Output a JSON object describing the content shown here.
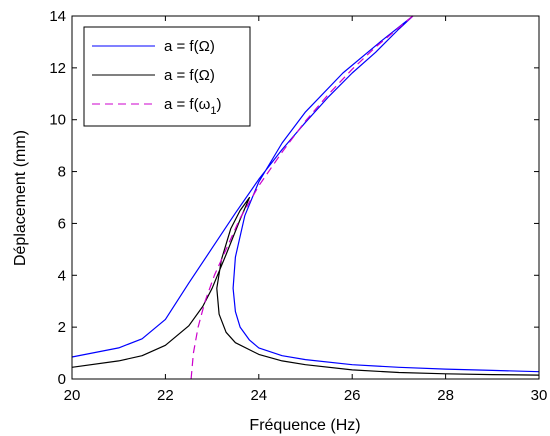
{
  "chart_data": {
    "type": "line",
    "title": "",
    "xlabel": "Fréquence (Hz)",
    "ylabel": "Déplacement (mm)",
    "xlim": [
      20,
      30
    ],
    "ylim": [
      0,
      14
    ],
    "xticks": [
      20,
      22,
      24,
      26,
      28,
      30
    ],
    "yticks": [
      0,
      2,
      4,
      6,
      8,
      10,
      12,
      14
    ],
    "xtick_labels": [
      "20",
      "22",
      "24",
      "26",
      "28",
      "30"
    ],
    "ytick_labels": [
      "0",
      "2",
      "4",
      "6",
      "8",
      "10",
      "12",
      "14"
    ],
    "grid": false,
    "legend_position": "top-left",
    "series": [
      {
        "name": "a = f(Ω)",
        "color": "#0000ff",
        "dash": "solid",
        "x": [
          20.0,
          21.0,
          21.5,
          22.0,
          22.5,
          23.0,
          23.5,
          24.0,
          24.5,
          25.0,
          25.5,
          26.0,
          26.5,
          27.0,
          27.3,
          26.6,
          25.8,
          25.0,
          24.5,
          24.0,
          23.7,
          23.5,
          23.45,
          23.5,
          23.6,
          23.8,
          24.0,
          24.5,
          25.0,
          26.0,
          27.0,
          28.0,
          29.0,
          30.0
        ],
        "y": [
          0.85,
          1.2,
          1.55,
          2.3,
          3.7,
          5.05,
          6.4,
          7.7,
          8.85,
          9.9,
          10.9,
          11.8,
          12.6,
          13.5,
          14.0,
          13.0,
          11.8,
          10.3,
          9.1,
          7.6,
          6.3,
          4.7,
          3.5,
          2.6,
          2.0,
          1.5,
          1.2,
          0.9,
          0.75,
          0.55,
          0.45,
          0.38,
          0.33,
          0.28
        ]
      },
      {
        "name": "a = f(Ω)",
        "color": "#000000",
        "dash": "solid",
        "x": [
          20.0,
          21.0,
          21.5,
          22.0,
          22.5,
          22.8,
          23.0,
          23.3,
          23.6,
          23.8,
          23.6,
          23.4,
          23.2,
          23.1,
          23.15,
          23.3,
          23.5,
          24.0,
          24.5,
          25.0,
          26.0,
          27.0,
          28.0,
          29.0,
          30.0
        ],
        "y": [
          0.45,
          0.7,
          0.9,
          1.3,
          2.05,
          2.8,
          3.5,
          4.8,
          6.15,
          7.0,
          6.5,
          5.8,
          4.6,
          3.5,
          2.5,
          1.8,
          1.4,
          0.95,
          0.7,
          0.55,
          0.35,
          0.25,
          0.2,
          0.17,
          0.15
        ]
      },
      {
        "name": "a = f(ω1)",
        "color": "#cc00cc",
        "dash": "dashed",
        "x": [
          22.55,
          22.6,
          22.7,
          22.85,
          23.05,
          23.3,
          23.6,
          24.0,
          24.5,
          25.0,
          25.5,
          26.0,
          26.5,
          27.3
        ],
        "y": [
          0.0,
          1.0,
          2.0,
          3.0,
          4.0,
          5.0,
          6.2,
          7.45,
          8.75,
          9.95,
          11.0,
          11.95,
          12.8,
          14.0
        ]
      }
    ]
  },
  "legend": {
    "entries": [
      "a = f(Ω)",
      "a = f(Ω)",
      "a = f(ω",
      "1",
      ")"
    ]
  }
}
